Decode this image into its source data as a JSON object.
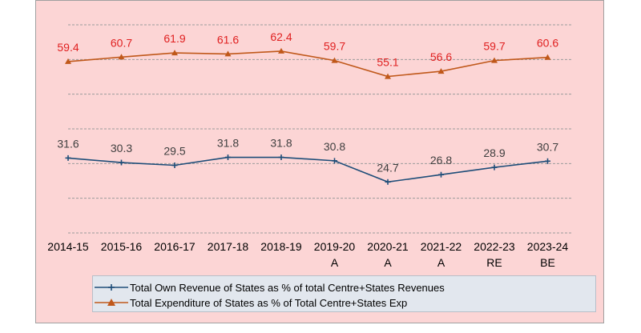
{
  "chart_data": {
    "type": "line",
    "categories": [
      "2014-15",
      "2015-16",
      "2016-17",
      "2017-18",
      "2018-19",
      "2019-20\nA",
      "2020-21\nA",
      "2021-22\nA",
      "2022-23\nRE",
      "2023-24\nBE"
    ],
    "category_lines": [
      [
        "2014-15"
      ],
      [
        "2015-16"
      ],
      [
        "2016-17"
      ],
      [
        "2017-18"
      ],
      [
        "2018-19"
      ],
      [
        "2019-20",
        "A"
      ],
      [
        "2020-21",
        "A"
      ],
      [
        "2021-22",
        "A"
      ],
      [
        "2022-23",
        "RE"
      ],
      [
        "2023-24",
        "BE"
      ]
    ],
    "series": [
      {
        "name": "Total Own Revenue of States as % of total Centre+States Revenues",
        "values": [
          31.6,
          30.3,
          29.5,
          31.8,
          31.8,
          30.8,
          24.7,
          26.8,
          28.9,
          30.7
        ],
        "color": "#1f4e79",
        "label_color": "#404040",
        "marker": "plus"
      },
      {
        "name": "Total Expenditure of States as % of Total Centre+States Exp",
        "values": [
          59.4,
          60.7,
          61.9,
          61.6,
          62.4,
          59.7,
          55.1,
          56.6,
          59.7,
          60.6
        ],
        "color": "#c0581a",
        "label_color": "#e02020",
        "marker": "triangle"
      }
    ],
    "ylim": [
      10,
      70
    ],
    "grid": true,
    "legend_position": "bottom"
  }
}
